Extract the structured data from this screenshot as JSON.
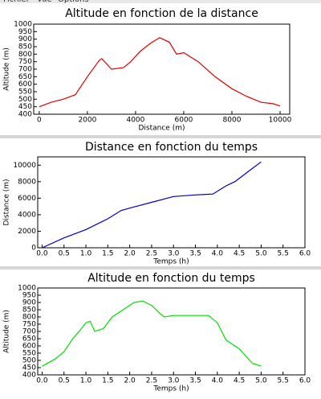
{
  "menu": [
    "Fichier",
    "Vue",
    "Options"
  ],
  "chart_data": [
    {
      "type": "line",
      "title": "Altitude en fonction de la distance",
      "x_label": "Distance (m)",
      "y_label": "Altitude (m)",
      "xlim": [
        -230,
        10400
      ],
      "ylim": [
        400,
        1000
      ],
      "xticks": [
        0,
        2000,
        4000,
        6000,
        8000,
        10000
      ],
      "yticks": [
        400,
        450,
        500,
        550,
        600,
        650,
        700,
        750,
        800,
        850,
        900,
        950,
        1000
      ],
      "series": [
        {
          "color": "#e00000",
          "x": [
            0,
            500,
            1000,
            1500,
            2000,
            2500,
            2600,
            3000,
            3500,
            3800,
            4200,
            4600,
            5000,
            5400,
            5700,
            6000,
            6600,
            7300,
            8000,
            8600,
            9200,
            9700,
            10000
          ],
          "values": [
            450,
            480,
            500,
            530,
            650,
            760,
            770,
            700,
            710,
            750,
            820,
            870,
            910,
            880,
            800,
            810,
            750,
            650,
            570,
            520,
            480,
            470,
            455
          ]
        }
      ]
    },
    {
      "type": "line",
      "title": "Distance en fonction du temps",
      "x_label": "Temps (h)",
      "y_label": "Distance (m)",
      "xlim": [
        -0.1,
        6.0
      ],
      "ylim": [
        0,
        11000
      ],
      "xticks": [
        {
          "value": 0,
          "label": "0.0"
        },
        0.5,
        {
          "value": 1,
          "label": "1.0"
        },
        1.5,
        {
          "value": 2,
          "label": "2.0"
        },
        2.5,
        {
          "value": 3,
          "label": "3.0"
        },
        3.5,
        {
          "value": 4,
          "label": "4.0"
        },
        4.5,
        {
          "value": 5,
          "label": "5.0"
        },
        5.5,
        {
          "value": 6,
          "label": "6.0"
        }
      ],
      "yticks": [
        0,
        2000,
        4000,
        6000,
        8000,
        10000
      ],
      "series": [
        {
          "color": "#0000c0",
          "x": [
            0,
            0.5,
            1,
            1.5,
            1.8,
            2,
            2.5,
            3,
            3.5,
            3.9,
            4.2,
            4.4,
            4.7,
            5
          ],
          "values": [
            0,
            1200,
            2200,
            3500,
            4500,
            4800,
            5500,
            6200,
            6400,
            6500,
            7500,
            8000,
            9200,
            10400
          ]
        }
      ]
    },
    {
      "type": "line",
      "title": "Altitude en fonction du temps",
      "x_label": "Temps (h)",
      "y_label": "Altitude (m)",
      "xlim": [
        -0.1,
        6.0
      ],
      "ylim": [
        400,
        1000
      ],
      "xticks": [
        {
          "value": 0,
          "label": "0.0"
        },
        0.5,
        {
          "value": 1,
          "label": "1.0"
        },
        1.5,
        {
          "value": 2,
          "label": "2.0"
        },
        2.5,
        {
          "value": 3,
          "label": "3.0"
        },
        3.5,
        {
          "value": 4,
          "label": "4.0"
        },
        4.5,
        {
          "value": 5,
          "label": "5.0"
        },
        5.5,
        {
          "value": 6,
          "label": "6.0"
        }
      ],
      "yticks": [
        400,
        450,
        500,
        550,
        600,
        650,
        700,
        750,
        800,
        850,
        900,
        950,
        1000
      ],
      "series": [
        {
          "color": "#00e000",
          "x": [
            0,
            0.3,
            0.5,
            0.7,
            0.9,
            1.0,
            1.1,
            1.2,
            1.4,
            1.6,
            1.9,
            2.1,
            2.3,
            2.5,
            2.7,
            2.8,
            3.0,
            3.5,
            3.8,
            4.0,
            4.2,
            4.5,
            4.8,
            5.0
          ],
          "values": [
            460,
            510,
            560,
            650,
            720,
            760,
            770,
            700,
            720,
            800,
            860,
            900,
            910,
            880,
            820,
            800,
            810,
            810,
            810,
            760,
            640,
            580,
            480,
            460
          ]
        }
      ]
    }
  ]
}
